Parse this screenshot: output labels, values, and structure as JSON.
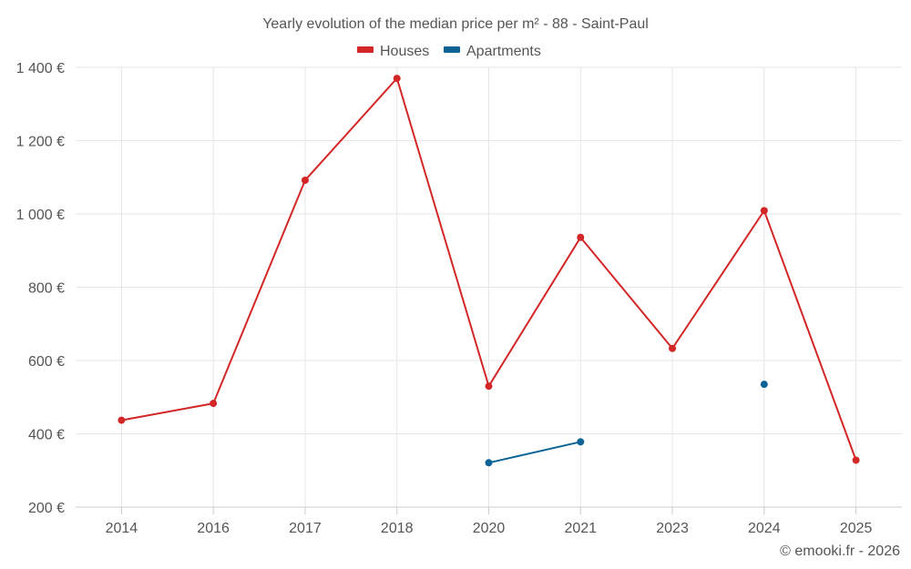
{
  "chart_data": {
    "type": "line",
    "title": "Yearly evolution of the median price per m² - 88 - Saint-Paul",
    "categories": [
      "2014",
      "2016",
      "2017",
      "2018",
      "2020",
      "2021",
      "2023",
      "2024",
      "2025"
    ],
    "series": [
      {
        "name": "Houses",
        "color": "#d32727",
        "values": [
          437,
          483,
          1092,
          1370,
          530,
          936,
          633,
          1009,
          328
        ]
      },
      {
        "name": "Apartments",
        "color": "#0b6396",
        "values": [
          null,
          null,
          null,
          null,
          321,
          378,
          null,
          535,
          null
        ]
      }
    ],
    "ylim": [
      200,
      1400
    ],
    "yticks": [
      200,
      400,
      600,
      800,
      1000,
      1200,
      1400
    ],
    "ytick_labels": [
      "200 €",
      "400 €",
      "600 €",
      "800 €",
      "1 000 €",
      "1 200 €",
      "1 400 €"
    ],
    "xlabel": "",
    "ylabel": "",
    "grid": true,
    "legend_position": "top-center"
  },
  "credit": "© emooki.fr - 2026"
}
